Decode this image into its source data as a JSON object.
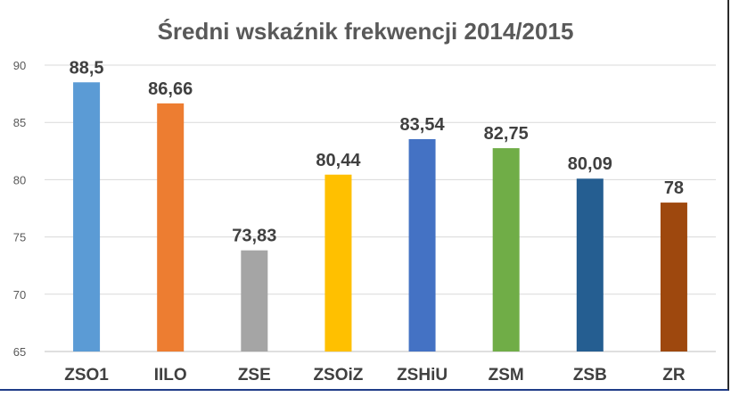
{
  "chart_data": {
    "type": "bar",
    "title": "Średni wskaźnik frekwencji 2014/2015",
    "xlabel": "",
    "ylabel": "",
    "categories": [
      "ZSO1",
      "IILO",
      "ZSE",
      "ZSOiZ",
      "ZSHiU",
      "ZSM",
      "ZSB",
      "ZR"
    ],
    "values": [
      88.5,
      86.66,
      73.83,
      80.44,
      83.54,
      82.75,
      80.09,
      78
    ],
    "value_labels": [
      "88,5",
      "86,66",
      "73,83",
      "80,44",
      "83,54",
      "82,75",
      "80,09",
      "78"
    ],
    "ylim": [
      65,
      90
    ],
    "yticks": [
      65,
      70,
      75,
      80,
      85,
      90
    ],
    "grid": true,
    "legend": "none",
    "colors": [
      "#5b9bd5",
      "#ed7d31",
      "#a5a5a5",
      "#ffc000",
      "#4472c4",
      "#70ad47",
      "#255e91",
      "#9e480e"
    ]
  }
}
